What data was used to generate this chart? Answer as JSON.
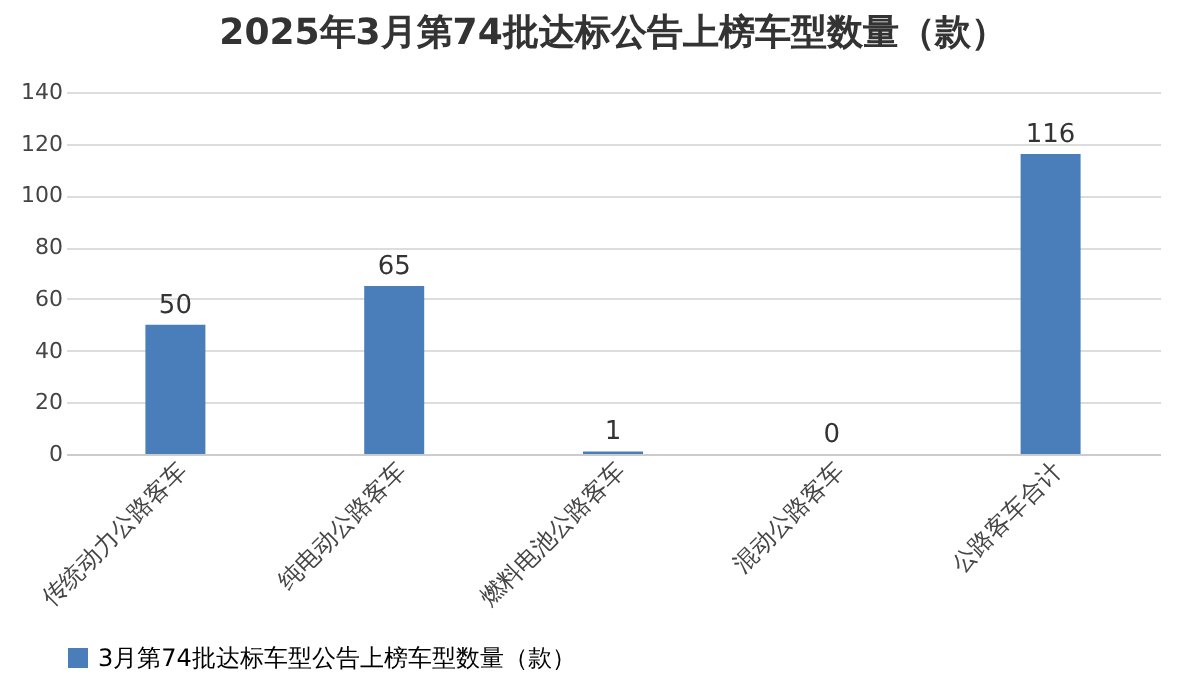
{
  "chart_data": {
    "type": "bar",
    "title": "2025年3月第74批达标公告上榜车型数量（款）",
    "categories": [
      "传统动力公路客车",
      "纯电动公路客车",
      "燃料电池公路客车",
      "混动公路客车",
      "公路客车合计"
    ],
    "series": [
      {
        "name": "3月第74批达标车型公告上榜车型数量（款）",
        "color": "#4a7ebb",
        "values": [
          50,
          65,
          1,
          0,
          116
        ]
      }
    ],
    "ylim": [
      0,
      140
    ],
    "yticks": [
      0,
      20,
      40,
      60,
      80,
      100,
      120,
      140
    ],
    "grid": "y",
    "legend": "bottom",
    "data_labels": true
  }
}
